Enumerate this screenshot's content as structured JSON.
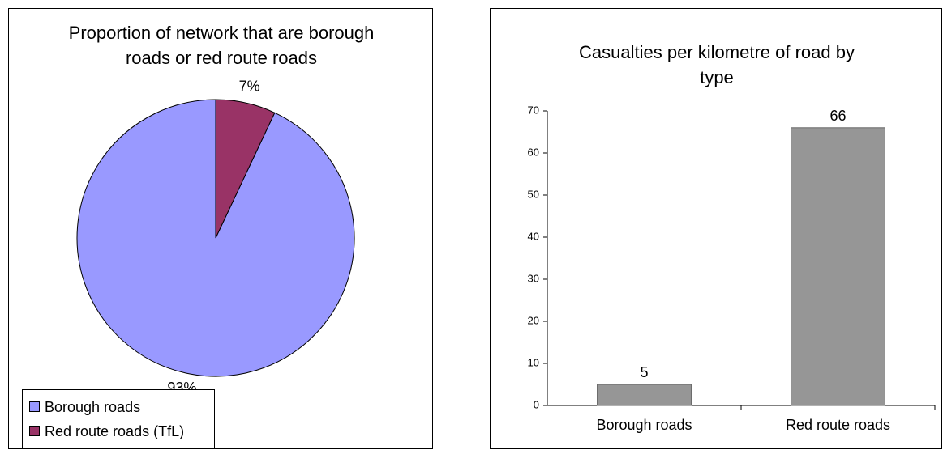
{
  "chart_data": [
    {
      "type": "pie",
      "title": "Proportion of network that are borough roads or red route roads",
      "title_lines": [
        "Proportion of network that are borough",
        "roads or red route roads"
      ],
      "slices": [
        {
          "name": "Borough roads",
          "value": 93,
          "label": "93%",
          "color": "#9999ff"
        },
        {
          "name": "Red route roads (TfL)",
          "value": 7,
          "label": "7%",
          "color": "#993366"
        }
      ],
      "legend": {
        "position": "bottom-left",
        "items": [
          "Borough roads",
          "Red route roads (TfL)"
        ]
      }
    },
    {
      "type": "bar",
      "title": "Casualties per kilometre of road by type",
      "title_lines": [
        "Casualties per kilometre of road by",
        "type"
      ],
      "categories": [
        "Borough roads",
        "Red route roads"
      ],
      "values": [
        5,
        66
      ],
      "value_labels": [
        "5",
        "66"
      ],
      "bar_color": "#969696",
      "ylim": [
        0,
        70
      ],
      "yticks": [
        "0",
        "10",
        "20",
        "30",
        "40",
        "50",
        "60",
        "70"
      ],
      "grid": false
    }
  ]
}
